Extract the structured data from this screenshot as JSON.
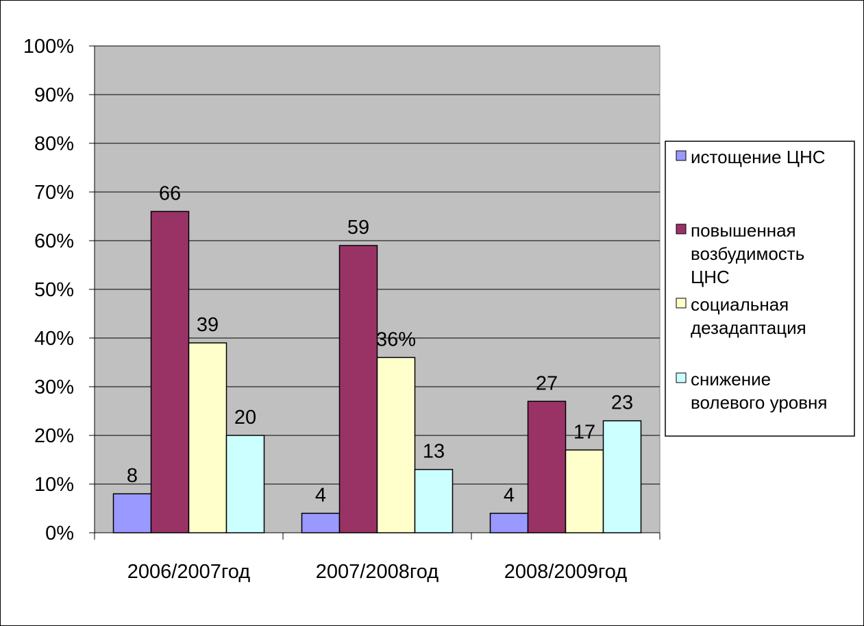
{
  "chart_data": {
    "type": "bar",
    "categories": [
      "2006/2007год",
      "2007/2008год",
      "2008/2009год"
    ],
    "series": [
      {
        "name": "истощение ЦНС",
        "values": [
          8,
          4,
          4
        ],
        "labels": [
          "8",
          "4",
          "4"
        ],
        "color": "#9999ff"
      },
      {
        "name": "повышенная возбудимость ЦНС",
        "values": [
          66,
          59,
          27
        ],
        "labels": [
          "66",
          "59",
          "27"
        ],
        "color": "#993366"
      },
      {
        "name": "социальная дезадаптация",
        "values": [
          39,
          36,
          17
        ],
        "labels": [
          "39",
          "36%",
          "17"
        ],
        "color": "#ffffcc"
      },
      {
        "name": "снижение волевого уровня",
        "values": [
          20,
          13,
          23
        ],
        "labels": [
          "20",
          "13",
          "23"
        ],
        "color": "#ccffff"
      }
    ],
    "ylim": [
      0,
      100
    ],
    "ytick_labels": [
      "0%",
      "10%",
      "20%",
      "30%",
      "40%",
      "50%",
      "60%",
      "70%",
      "80%",
      "90%",
      "100%"
    ],
    "legend_entries": [
      [
        "истощение ЦНС"
      ],
      [
        "повышенная",
        "возбудимость",
        "ЦНС"
      ],
      [
        "социальная",
        "дезадаптация"
      ],
      [
        "снижение",
        "волевого  уровня"
      ]
    ],
    "legend_position": "right",
    "grid": true,
    "plot_background": "#c0c0c0"
  }
}
